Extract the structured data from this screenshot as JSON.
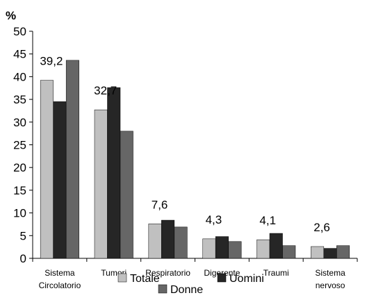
{
  "chart_data": {
    "type": "bar",
    "title": "",
    "xlabel": "",
    "ylabel": "%",
    "ylim": [
      0,
      50
    ],
    "yticks": [
      0,
      5,
      10,
      15,
      20,
      25,
      30,
      35,
      40,
      45,
      50
    ],
    "grid": false,
    "legend_position": "bottom",
    "categories": [
      [
        "Sistema",
        "Circolatorio"
      ],
      [
        "Tumori"
      ],
      [
        "Respiratorio"
      ],
      [
        "Digerente"
      ],
      [
        "Traumi"
      ],
      [
        "Sistema",
        "nervoso"
      ]
    ],
    "series": [
      {
        "name": "Totale",
        "color": "#c0c0c0",
        "values": [
          39.2,
          32.7,
          7.6,
          4.3,
          4.1,
          2.6
        ]
      },
      {
        "name": "Uomini",
        "color": "#262626",
        "values": [
          34.5,
          37.6,
          8.4,
          4.8,
          5.5,
          2.2
        ]
      },
      {
        "name": "Donne",
        "color": "#666666",
        "values": [
          43.6,
          28.0,
          6.9,
          3.7,
          2.8,
          2.8
        ]
      }
    ],
    "data_labels": [
      "39,2",
      "32,7",
      "7,6",
      "4,3",
      "4,1",
      "2,6"
    ]
  }
}
